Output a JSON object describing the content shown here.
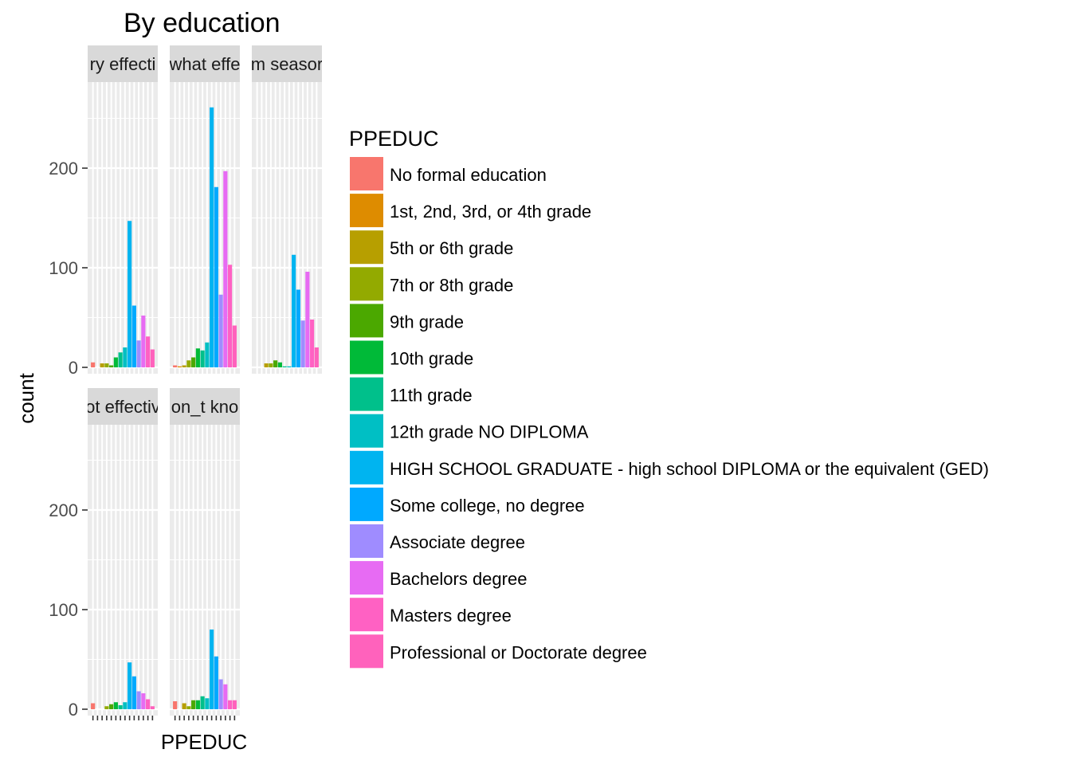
{
  "chart_data": {
    "type": "bar",
    "title": "By education",
    "xlabel": "PPEDUC",
    "ylabel": "count",
    "ylim": [
      0,
      280
    ],
    "yticks": [
      0,
      100,
      200
    ],
    "legend": {
      "title": "PPEDUC",
      "placement": "right",
      "categories": [
        {
          "label": "No formal education",
          "color": "#F8766D"
        },
        {
          "label": "1st, 2nd, 3rd, or 4th grade",
          "color": "#DE8C00"
        },
        {
          "label": "5th or 6th grade",
          "color": "#B79F00"
        },
        {
          "label": "7th or 8th grade",
          "color": "#93AA00"
        },
        {
          "label": "9th grade",
          "color": "#4BA800"
        },
        {
          "label": "10th grade",
          "color": "#00BA38"
        },
        {
          "label": "11th grade",
          "color": "#00C08B"
        },
        {
          "label": "12th grade NO DIPLOMA",
          "color": "#00BFC4"
        },
        {
          "label": "HIGH SCHOOL GRADUATE - high school DIPLOMA or the equivalent (GED)",
          "color": "#00B4F0"
        },
        {
          "label": "Some college, no degree",
          "color": "#00A9FF"
        },
        {
          "label": "Associate degree",
          "color": "#9F8CFF"
        },
        {
          "label": "Bachelors degree",
          "color": "#E76BF3"
        },
        {
          "label": "Masters degree",
          "color": "#FF61C3"
        },
        {
          "label": "Professional or Doctorate degree",
          "color": "#FF62BC"
        }
      ]
    },
    "panels": [
      {
        "strip": "ry effecti",
        "values": [
          5,
          0,
          4,
          4,
          2,
          10,
          15,
          20,
          147,
          62,
          27,
          52,
          31,
          18
        ]
      },
      {
        "strip": "what effe",
        "values": [
          2,
          1,
          2,
          7,
          10,
          19,
          17,
          25,
          261,
          181,
          73,
          197,
          103,
          42
        ]
      },
      {
        "strip": "m seasor",
        "values": [
          0,
          0,
          4,
          4,
          7,
          5,
          1,
          1,
          113,
          78,
          47,
          96,
          48,
          20
        ]
      },
      {
        "strip": "ot effectiv",
        "values": [
          6,
          0,
          0,
          3,
          5,
          7,
          4,
          7,
          47,
          33,
          18,
          16,
          10,
          3
        ]
      },
      {
        "strip": "on_t kno",
        "values": [
          8,
          0,
          6,
          3,
          9,
          9,
          13,
          11,
          80,
          53,
          30,
          25,
          9,
          9
        ]
      }
    ]
  }
}
